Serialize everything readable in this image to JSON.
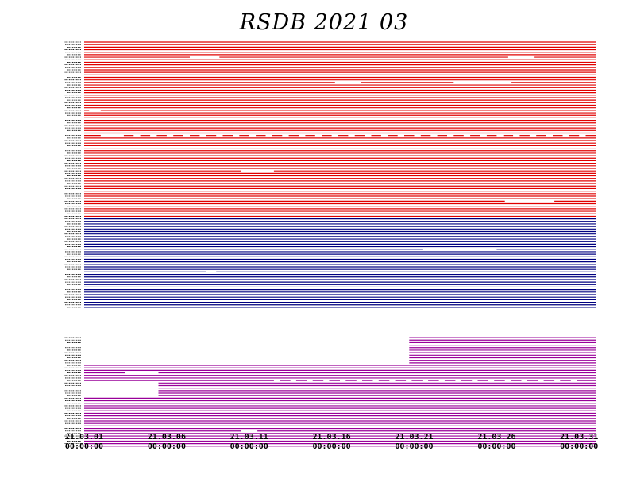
{
  "chart_data": {
    "type": "timeline",
    "title": "RSDB  2021  03",
    "x_ticks": [
      {
        "date": "21.03.01",
        "time": "00:00:00",
        "day": 0
      },
      {
        "date": "21.03.06",
        "time": "00:00:00",
        "day": 5
      },
      {
        "date": "21.03.11",
        "time": "00:00:00",
        "day": 10
      },
      {
        "date": "21.03.16",
        "time": "00:00:00",
        "day": 15
      },
      {
        "date": "21.03.21",
        "time": "00:00:00",
        "day": 20
      },
      {
        "date": "21.03.26",
        "time": "00:00:00",
        "day": 25
      },
      {
        "date": "21.03.31",
        "time": "00:00:00",
        "day": 30
      }
    ],
    "xlim_days": [
      0,
      31
    ],
    "groups": [
      {
        "color": "#e00000",
        "rows": 70
      },
      {
        "color": "#000080",
        "rows": 36
      },
      {
        "color": "#990099",
        "rows": 44
      }
    ],
    "gap_rows_between_blue_and_purple": 11,
    "coverage": [
      {
        "group": 2,
        "row_from": 0,
        "row_to": 10,
        "start_day": 19.7,
        "end_day": 31
      },
      {
        "group": 2,
        "row_from": 11,
        "row_to": 17,
        "start_day": 0,
        "end_day": 31
      },
      {
        "group": 2,
        "row_from": 18,
        "row_to": 23,
        "start_day": 4.5,
        "end_day": 31
      },
      {
        "group": 2,
        "row_from": 24,
        "row_to": 43,
        "start_day": 0,
        "end_day": 31
      }
    ],
    "outages": [
      {
        "group": 0,
        "row": 6,
        "start_day": 6.4,
        "end_day": 8.2
      },
      {
        "group": 0,
        "row": 6,
        "start_day": 25.7,
        "end_day": 27.3
      },
      {
        "group": 0,
        "row": 16,
        "start_day": 15.2,
        "end_day": 16.8
      },
      {
        "group": 0,
        "row": 16,
        "start_day": 22.4,
        "end_day": 25.9
      },
      {
        "group": 0,
        "row": 27,
        "start_day": 0.3,
        "end_day": 1.0
      },
      {
        "group": 0,
        "row": 37,
        "start_day": 1.0,
        "end_day": 2.0
      },
      {
        "group": 0,
        "row": 51,
        "start_day": 9.5,
        "end_day": 11.5
      },
      {
        "group": 0,
        "row": 63,
        "start_day": 25.5,
        "end_day": 28.5
      },
      {
        "group": 1,
        "row": 12,
        "start_day": 20.5,
        "end_day": 25.0
      },
      {
        "group": 1,
        "row": 21,
        "start_day": 7.4,
        "end_day": 8.0
      },
      {
        "group": 2,
        "row": 14,
        "start_day": 2.5,
        "end_day": 4.5
      },
      {
        "group": 2,
        "row": 37,
        "start_day": 9.5,
        "end_day": 10.5
      }
    ],
    "periodic_dropouts": [
      {
        "group": 0,
        "row": 37,
        "start_day": 2,
        "end_day": 31,
        "period_days": 1.0,
        "duration_days": 0.4
      },
      {
        "group": 2,
        "row": 17,
        "start_day": 11.5,
        "end_day": 30.5,
        "period_days": 1.0,
        "duration_days": 0.35
      }
    ]
  }
}
